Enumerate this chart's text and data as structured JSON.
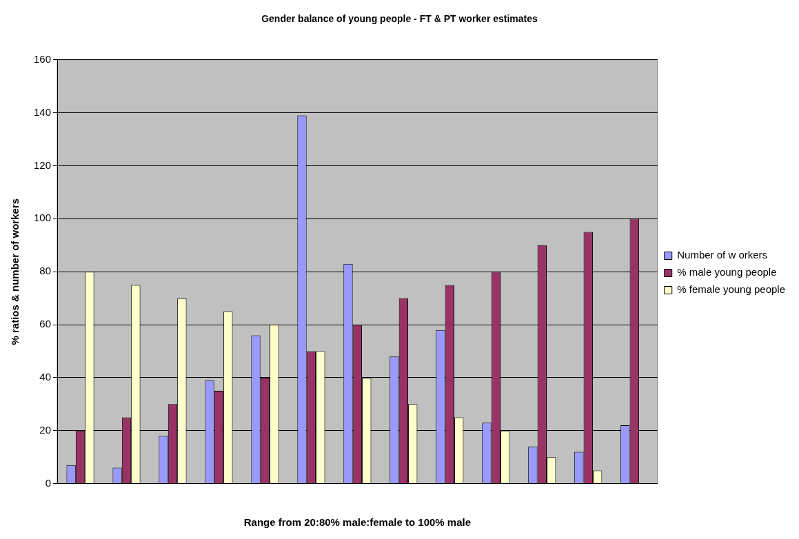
{
  "chart_data": {
    "type": "bar",
    "title": "Gender balance of young people - FT & PT worker estimates",
    "xlabel": "Range from 20:80% male:female to 100% male",
    "ylabel": "% ratios & number of workers",
    "categories": [
      null,
      null,
      null,
      null,
      null,
      null,
      null,
      null,
      null,
      null,
      null,
      null,
      null
    ],
    "series": [
      {
        "name": "Number of w orkers",
        "color": "#9999ff",
        "values": [
          7,
          6,
          18,
          39,
          56,
          139,
          83,
          48,
          58,
          23,
          14,
          12,
          22
        ]
      },
      {
        "name": "% male young people",
        "color": "#993366",
        "values": [
          20,
          25,
          30,
          35,
          40,
          50,
          60,
          70,
          75,
          80,
          90,
          95,
          100
        ]
      },
      {
        "name": "% female young people",
        "color": "#ffffcc",
        "values": [
          80,
          75,
          70,
          65,
          60,
          50,
          40,
          30,
          25,
          20,
          10,
          5,
          0
        ]
      }
    ],
    "ylim": [
      0,
      160
    ],
    "yticks": [
      0,
      20,
      40,
      60,
      80,
      100,
      120,
      140,
      160
    ],
    "grid": "y",
    "legend": "right"
  }
}
